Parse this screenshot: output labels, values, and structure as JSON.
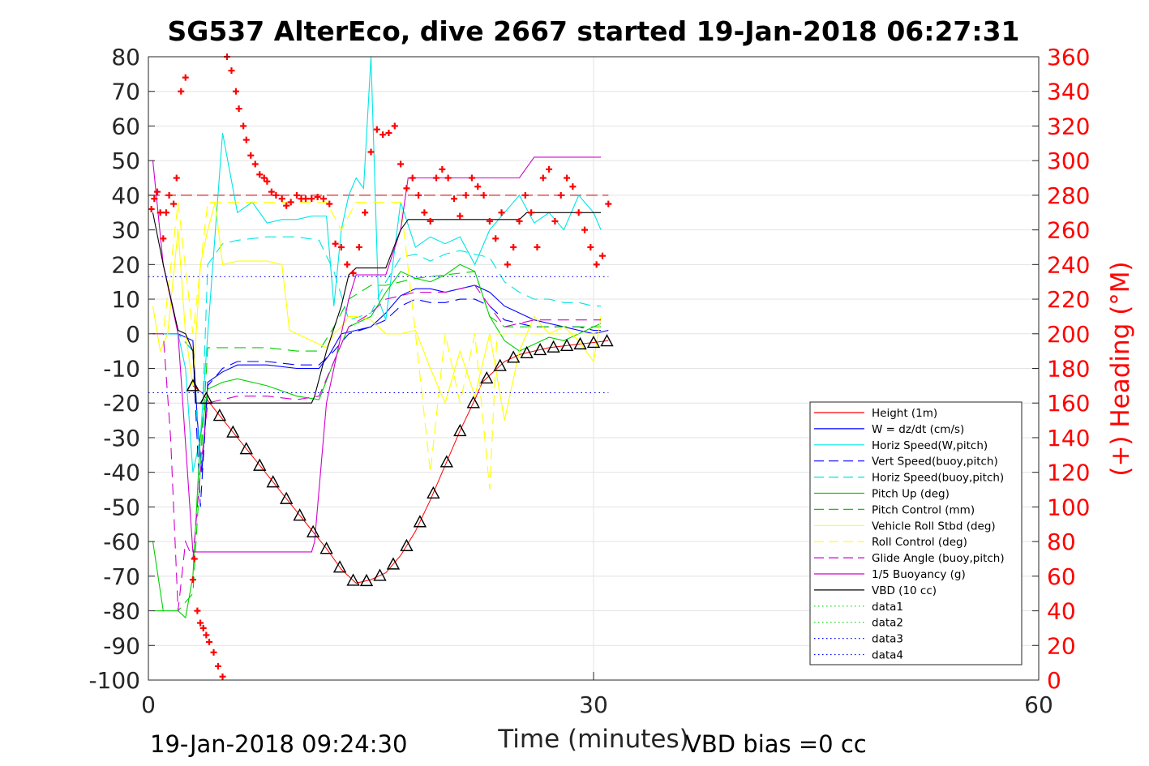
{
  "chart_data": {
    "type": "line",
    "title": "SG537 AlterEco, dive 2667 started 19-Jan-2018 06:27:31",
    "xlabel": "Time (minutes)",
    "ylabel_right": "(+) Heading (°M)",
    "xlim": [
      0,
      60
    ],
    "ylim_left": [
      -100,
      80
    ],
    "ylim_right": [
      0,
      360
    ],
    "xticks": [
      "0",
      "30",
      "60"
    ],
    "yticks_left": [
      "80",
      "70",
      "60",
      "50",
      "40",
      "30",
      "20",
      "10",
      "0",
      "-10",
      "-20",
      "-30",
      "-40",
      "-50",
      "-60",
      "-70",
      "-80",
      "-90",
      "-100"
    ],
    "yticks_right": [
      "360",
      "340",
      "320",
      "300",
      "280",
      "260",
      "240",
      "220",
      "200",
      "180",
      "160",
      "140",
      "120",
      "100",
      "80",
      "60",
      "40",
      "20",
      "0"
    ],
    "grid": true,
    "legend_position": "lower-right",
    "colors": {
      "height": "#ff0000",
      "w": "#0000ff",
      "horiz_w": "#00e5e5",
      "vert_buoy": "#0000ff",
      "horiz_buoy": "#00e5e5",
      "pitch_up": "#00d000",
      "pitch_ctrl": "#00d000",
      "roll": "#ffff00",
      "roll_ctrl": "#ffff00",
      "glide": "#d000d0",
      "buoyancy": "#d000d0",
      "vbd": "#000000",
      "heading": "#ff0000"
    },
    "series": [
      {
        "name": "Height (1m)",
        "color": "#ff0000",
        "style": "solid",
        "x": [
          3.0,
          3.6,
          4.5,
          6,
          7.5,
          9,
          10.5,
          12,
          13,
          14,
          15,
          16,
          17,
          18,
          19,
          20,
          21,
          22,
          22.5,
          23,
          24,
          25,
          26,
          27,
          28,
          29,
          30,
          31
        ],
        "y": [
          -15,
          -17,
          -22,
          -30,
          -38,
          -46,
          -54,
          -62,
          -68,
          -72,
          -71,
          -69,
          -64,
          -57,
          -48,
          -38,
          -28,
          -19,
          -14,
          -12,
          -8,
          -6,
          -5,
          -4,
          -3.5,
          -3,
          -2.5,
          -2
        ]
      },
      {
        "name": "W = dz/dt (cm/s)",
        "color": "#0000ff",
        "style": "solid",
        "x": [
          0.3,
          1,
          2,
          3,
          3.3,
          3.6,
          4,
          5,
          6,
          8,
          10,
          11.5,
          12.2,
          13,
          14,
          15,
          16,
          17,
          18,
          19,
          20,
          21,
          22,
          23,
          24,
          25,
          26,
          27,
          28,
          29,
          30,
          31
        ],
        "y": [
          0,
          0,
          0,
          -2,
          -25,
          -40,
          -14,
          -11,
          -9,
          -9,
          -10,
          -10,
          -6,
          0,
          1,
          2,
          6,
          11,
          13,
          13,
          12,
          13,
          14,
          12,
          8,
          6,
          4,
          3,
          2,
          1,
          0,
          1
        ]
      },
      {
        "name": "Horiz Speed(W,pitch)",
        "color": "#00e5e5",
        "style": "solid",
        "x": [
          0.3,
          1,
          2,
          2.5,
          3,
          3.5,
          4,
          5,
          6,
          7,
          8,
          9,
          10,
          11,
          12,
          12.5,
          13,
          13.5,
          14,
          14.5,
          15,
          15.5,
          16,
          17,
          18,
          19,
          20,
          21,
          22,
          23,
          24,
          25,
          26,
          27,
          28,
          29,
          30,
          30.5
        ],
        "y": [
          0,
          0,
          0,
          -10,
          -40,
          -30,
          0,
          58,
          35,
          38,
          32,
          33,
          33,
          34,
          34,
          8,
          30,
          40,
          45,
          42,
          80,
          10,
          4,
          38,
          25,
          28,
          26,
          28,
          20,
          30,
          35,
          40,
          32,
          35,
          30,
          40,
          35,
          30
        ]
      },
      {
        "name": "Vert Speed(buoy,pitch)",
        "color": "#0000ff",
        "style": "dash",
        "x": [
          0.3,
          1,
          2,
          3,
          3.5,
          4,
          5,
          6,
          8,
          10,
          11.5,
          12.5,
          13.5,
          15,
          16,
          17,
          18,
          19,
          20,
          21,
          22,
          23,
          24,
          25,
          26,
          27,
          28,
          29,
          30,
          30.5
        ],
        "y": [
          0,
          0,
          0,
          -5,
          -50,
          -15,
          -10,
          -8,
          -8,
          -9,
          -9,
          -5,
          0,
          2,
          4,
          8,
          10,
          9,
          9,
          10,
          10,
          8,
          4,
          3,
          2,
          2,
          2,
          2,
          1,
          1
        ]
      },
      {
        "name": "Horiz Speed(buoy,pitch)",
        "color": "#00e5e5",
        "style": "dash",
        "x": [
          0.3,
          1,
          2,
          3,
          3.5,
          4,
          5,
          6,
          8,
          10,
          11.5,
          12.5,
          13.5,
          15,
          16,
          17,
          18,
          19,
          20,
          21,
          22,
          23,
          24,
          25,
          26,
          27,
          28,
          29,
          30,
          30.5
        ],
        "y": [
          0,
          0,
          0,
          -5,
          -40,
          20,
          26,
          27,
          28,
          28,
          27,
          18,
          4,
          6,
          15,
          22,
          23,
          21,
          23,
          24,
          23,
          22,
          15,
          12,
          10,
          10,
          9,
          9,
          8,
          8
        ]
      },
      {
        "name": "Pitch Up (deg)",
        "color": "#00d000",
        "style": "solid",
        "x": [
          0.3,
          1,
          2,
          2.5,
          3,
          3.5,
          4,
          5,
          6,
          8,
          10,
          11.5,
          12.5,
          13.5,
          15,
          16,
          17,
          18,
          19,
          20,
          21,
          22,
          23,
          24,
          25,
          26,
          27,
          28,
          29,
          30,
          30.5
        ],
        "y": [
          -60,
          -80,
          -80,
          -82,
          -70,
          -30,
          -16,
          -14,
          -13,
          -15,
          -18,
          -19,
          -8,
          2,
          5,
          12,
          18,
          16,
          15,
          17,
          20,
          18,
          5,
          -2,
          -5,
          -3,
          -1,
          -2,
          0,
          2,
          3
        ]
      },
      {
        "name": "Pitch Control (mm)",
        "color": "#00d000",
        "style": "dash",
        "x": [
          0.3,
          1,
          2,
          3,
          4,
          6,
          8,
          10,
          11.5,
          12.5,
          13.5,
          15,
          16,
          18,
          20,
          22,
          23,
          24,
          26,
          28,
          30,
          30.5
        ],
        "y": [
          -80,
          -80,
          -80,
          -75,
          -4,
          -4,
          -4,
          -5,
          -5,
          2,
          10,
          14,
          14,
          16,
          17,
          18,
          5,
          2,
          2,
          2,
          2,
          2
        ]
      },
      {
        "name": "Vehicle Roll Stbd (deg)",
        "color": "#ffff00",
        "style": "solid",
        "x": [
          0.3,
          0.8,
          1.3,
          2,
          2.5,
          3,
          3.5,
          4,
          4.5,
          5,
          6,
          8,
          9,
          9.5,
          10,
          11,
          12,
          12.5,
          13,
          13.5,
          14,
          15,
          16,
          17,
          18,
          19,
          20,
          21,
          22,
          23,
          24,
          25,
          26,
          27,
          28,
          29,
          30,
          30.5
        ],
        "y": [
          8,
          -5,
          0,
          30,
          0,
          -15,
          20,
          30,
          38,
          20,
          21,
          21,
          20,
          1,
          0,
          -2,
          -4,
          0,
          2,
          5,
          5,
          4,
          0,
          0,
          1,
          -10,
          -20,
          -5,
          -18,
          0,
          -25,
          -5,
          5,
          0,
          2,
          -2,
          -8,
          5
        ]
      },
      {
        "name": "Roll Control (deg)",
        "color": "#ffff00",
        "style": "dash",
        "x": [
          0.3,
          1,
          2,
          3,
          4,
          6,
          8,
          10,
          12,
          13,
          14,
          16,
          17,
          18,
          19,
          20,
          21,
          22,
          23,
          23.5,
          24,
          25,
          26,
          28,
          30,
          30.5
        ],
        "y": [
          0,
          0,
          38,
          0,
          38,
          38,
          38,
          38,
          38,
          30,
          38,
          38,
          38,
          0,
          -40,
          0,
          -20,
          0,
          -45,
          0,
          0,
          0,
          0,
          0,
          0,
          0
        ]
      },
      {
        "name": "Glide Angle (buoy,pitch)",
        "color": "#d000d0",
        "style": "dash",
        "x": [
          0.3,
          1,
          1.5,
          2,
          2.5,
          3,
          3.5,
          4,
          6,
          8,
          10,
          11.5,
          12.5,
          13.5,
          15,
          16,
          18,
          20,
          22,
          23,
          24,
          26,
          28,
          30,
          30.5
        ],
        "y": [
          0,
          0,
          -30,
          -80,
          -60,
          -65,
          -40,
          -20,
          -18,
          -18,
          -19,
          -18,
          -8,
          2,
          6,
          10,
          12,
          12,
          14,
          8,
          2,
          4,
          4,
          4,
          4
        ]
      },
      {
        "name": "1/5 Buoyancy (g)",
        "color": "#d000d0",
        "style": "solid",
        "x": [
          0.3,
          1,
          2,
          3,
          3.2,
          4,
          6,
          8,
          10,
          11,
          11.2,
          12,
          13,
          13.5,
          14,
          15,
          15.5,
          16,
          17,
          17.5,
          18,
          20,
          22,
          24,
          25,
          25.5,
          26,
          28,
          30,
          30.5
        ],
        "y": [
          50,
          20,
          0,
          -63,
          -63,
          -63,
          -63,
          -63,
          -63,
          -63,
          -60,
          -20,
          0,
          10,
          17,
          17,
          17,
          17,
          30,
          45,
          45,
          45,
          45,
          45,
          45,
          48,
          51,
          51,
          51,
          51
        ]
      },
      {
        "name": "VBD (10 cc)",
        "color": "#000000",
        "style": "solid",
        "x": [
          0.3,
          1,
          2,
          2.5,
          3,
          3.2,
          4,
          6,
          8,
          10,
          11,
          11.2,
          12,
          13,
          13.5,
          14,
          15,
          15.5,
          16,
          17,
          17.5,
          18,
          20,
          22,
          24,
          25,
          25.5,
          26,
          28,
          30,
          30.5
        ],
        "y": [
          35,
          20,
          1,
          0,
          -5,
          -20,
          -20,
          -20,
          -20,
          -20,
          -20,
          -18,
          -5,
          8,
          17,
          19,
          19,
          19,
          19,
          30,
          33,
          33,
          33,
          33,
          33,
          33,
          35,
          35,
          35,
          35,
          35
        ]
      },
      {
        "name": "data1",
        "color": "#00d000",
        "style": "dot"
      },
      {
        "name": "data2",
        "color": "#00d000",
        "style": "dot"
      },
      {
        "name": "data3",
        "color": "#0000ff",
        "style": "dot",
        "y_const": 16.5,
        "x_end": 31
      },
      {
        "name": "data4",
        "color": "#0000ff",
        "style": "dot",
        "y_const": -17,
        "x_end": 31
      }
    ],
    "heading_target_deg": 280,
    "heading_points": {
      "x": [
        0.2,
        0.4,
        0.6,
        0.8,
        1.0,
        1.2,
        1.4,
        1.7,
        1.9,
        2.2,
        2.5,
        3.0,
        3.1,
        3.3,
        3.5,
        3.7,
        3.9,
        4.1,
        4.4,
        4.7,
        5.0,
        5.3,
        5.6,
        5.9,
        6.1,
        6.4,
        6.6,
        6.9,
        7.2,
        7.5,
        7.8,
        8.0,
        8.3,
        8.6,
        9.0,
        9.3,
        9.6,
        10.0,
        10.3,
        10.6,
        11.0,
        11.4,
        11.8,
        12.2,
        12.6,
        13.0,
        13.4,
        13.8,
        14.2,
        14.6,
        15.0,
        15.4,
        15.8,
        16.2,
        16.6,
        17.0,
        17.4,
        17.8,
        18.2,
        18.6,
        19.0,
        19.4,
        19.8,
        20.2,
        20.6,
        21.0,
        21.4,
        21.8,
        22.2,
        22.6,
        23.0,
        23.4,
        23.8,
        24.2,
        24.6,
        25.0,
        25.4,
        25.8,
        26.2,
        26.6,
        27.0,
        27.4,
        27.8,
        28.2,
        28.6,
        29.0,
        29.4,
        29.8,
        30.2,
        30.6,
        31.0
      ],
      "y": [
        272,
        278,
        282,
        270,
        255,
        270,
        280,
        275,
        290,
        340,
        348,
        58,
        70,
        40,
        33,
        30,
        26,
        22,
        16,
        8,
        2,
        360,
        352,
        340,
        330,
        320,
        312,
        303,
        298,
        292,
        290,
        288,
        282,
        280,
        278,
        274,
        276,
        280,
        278,
        278,
        278,
        279,
        278,
        275,
        252,
        250,
        240,
        235,
        250,
        270,
        305,
        318,
        315,
        316,
        320,
        298,
        284,
        290,
        280,
        270,
        265,
        290,
        295,
        290,
        278,
        268,
        280,
        290,
        285,
        280,
        265,
        255,
        270,
        240,
        250,
        265,
        280,
        270,
        250,
        290,
        295,
        265,
        280,
        290,
        285,
        270,
        260,
        250,
        240,
        245,
        275
      ]
    },
    "footer_left": "19-Jan-2018 09:24:30",
    "footer_right": "VBD bias =0 cc"
  }
}
